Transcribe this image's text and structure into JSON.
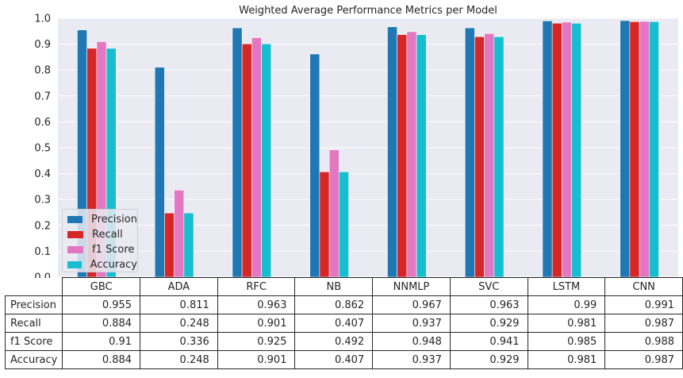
{
  "chart_data": {
    "type": "bar",
    "title": "Weighted Average Performance Metrics per Model",
    "categories": [
      "GBC",
      "ADA",
      "RFC",
      "NB",
      "NNMLP",
      "SVC",
      "LSTM",
      "CNN"
    ],
    "series": [
      {
        "name": "Precision",
        "color": "#1f77b4",
        "values": [
          0.955,
          0.811,
          0.963,
          0.862,
          0.967,
          0.963,
          0.99,
          0.991
        ]
      },
      {
        "name": "Recall",
        "color": "#d62728",
        "values": [
          0.884,
          0.248,
          0.901,
          0.407,
          0.937,
          0.929,
          0.981,
          0.987
        ]
      },
      {
        "name": "f1 Score",
        "color": "#e377c2",
        "values": [
          0.91,
          0.336,
          0.925,
          0.492,
          0.948,
          0.941,
          0.985,
          0.988
        ]
      },
      {
        "name": "Accuracy",
        "color": "#17becf",
        "values": [
          0.884,
          0.248,
          0.901,
          0.407,
          0.937,
          0.929,
          0.981,
          0.987
        ]
      }
    ],
    "ylim": [
      0,
      1.0
    ],
    "yticks": [
      "0.0",
      "0.1",
      "0.2",
      "0.3",
      "0.4",
      "0.5",
      "0.6",
      "0.7",
      "0.8",
      "0.9",
      "1.0"
    ],
    "grid": true,
    "legend_position": "lower-left",
    "table": {
      "columns": [
        "GBC",
        "ADA",
        "RFC",
        "NB",
        "NNMLP",
        "SVC",
        "LSTM",
        "CNN"
      ],
      "rows": [
        {
          "label": "Precision",
          "cells": [
            "0.955",
            "0.811",
            "0.963",
            "0.862",
            "0.967",
            "0.963",
            "0.99",
            "0.991"
          ]
        },
        {
          "label": "Recall",
          "cells": [
            "0.884",
            "0.248",
            "0.901",
            "0.407",
            "0.937",
            "0.929",
            "0.981",
            "0.987"
          ]
        },
        {
          "label": "f1 Score",
          "cells": [
            "0.91",
            "0.336",
            "0.925",
            "0.492",
            "0.948",
            "0.941",
            "0.985",
            "0.988"
          ]
        },
        {
          "label": "Accuracy",
          "cells": [
            "0.884",
            "0.248",
            "0.901",
            "0.407",
            "0.937",
            "0.929",
            "0.981",
            "0.987"
          ]
        }
      ]
    }
  }
}
